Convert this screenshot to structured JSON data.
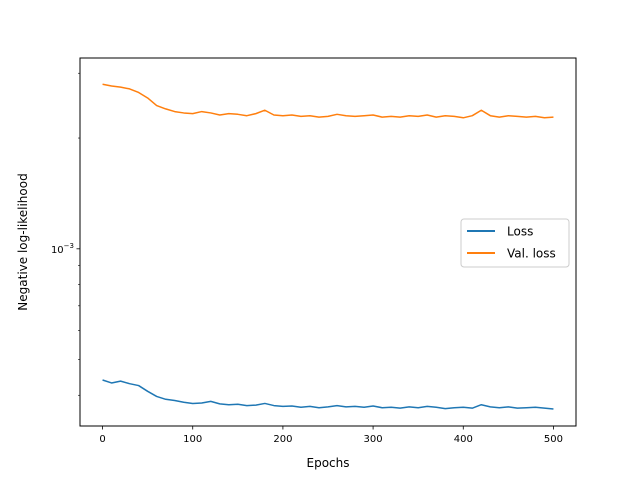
{
  "chart_data": {
    "type": "line",
    "title": "",
    "xlabel": "Epochs",
    "ylabel": "Negative log-likelihood",
    "xlim": [
      -25,
      525
    ],
    "ylim": [
      0.00033,
      0.0033
    ],
    "yscale": "log",
    "x_ticks": [
      0,
      100,
      200,
      300,
      400,
      500
    ],
    "x_tick_labels": [
      "0",
      "100",
      "200",
      "300",
      "400",
      "500"
    ],
    "y_major_tick": 0.001,
    "y_major_tick_label": "10",
    "y_major_tick_exponent": "−3",
    "grid": false,
    "legend_position": "center-right",
    "x": [
      0,
      10,
      20,
      30,
      40,
      50,
      60,
      70,
      80,
      90,
      100,
      110,
      120,
      130,
      140,
      150,
      160,
      170,
      180,
      190,
      200,
      210,
      220,
      230,
      240,
      250,
      260,
      270,
      280,
      290,
      300,
      310,
      320,
      330,
      340,
      350,
      360,
      370,
      380,
      390,
      400,
      410,
      420,
      430,
      440,
      450,
      460,
      470,
      480,
      490,
      500
    ],
    "series": [
      {
        "name": "Loss",
        "color": "#1f77b4",
        "values": [
          0.00044,
          0.000432,
          0.000437,
          0.00043,
          0.000425,
          0.00041,
          0.000397,
          0.00039,
          0.000387,
          0.000383,
          0.00038,
          0.000381,
          0.000385,
          0.000379,
          0.000377,
          0.000378,
          0.000375,
          0.000376,
          0.00038,
          0.000375,
          0.000373,
          0.000374,
          0.000371,
          0.000373,
          0.00037,
          0.000372,
          0.000375,
          0.000372,
          0.000373,
          0.000371,
          0.000374,
          0.00037,
          0.000371,
          0.000369,
          0.000372,
          0.00037,
          0.000373,
          0.000371,
          0.000368,
          0.00037,
          0.000371,
          0.000369,
          0.000377,
          0.000372,
          0.00037,
          0.000372,
          0.000369,
          0.00037,
          0.000371,
          0.000369,
          0.000367
        ]
      },
      {
        "name": "Val. loss",
        "color": "#ff7f0e",
        "values": [
          0.0028,
          0.00277,
          0.00275,
          0.00272,
          0.00266,
          0.00257,
          0.00245,
          0.0024,
          0.00236,
          0.00234,
          0.00233,
          0.00236,
          0.00234,
          0.00231,
          0.00233,
          0.00232,
          0.0023,
          0.00233,
          0.00238,
          0.00231,
          0.0023,
          0.00231,
          0.00229,
          0.0023,
          0.00228,
          0.00229,
          0.00232,
          0.0023,
          0.00229,
          0.0023,
          0.00231,
          0.00228,
          0.00229,
          0.00228,
          0.0023,
          0.00229,
          0.00231,
          0.00228,
          0.0023,
          0.00229,
          0.00227,
          0.0023,
          0.00238,
          0.0023,
          0.00228,
          0.0023,
          0.00229,
          0.00228,
          0.00229,
          0.00227,
          0.00228
        ]
      }
    ]
  }
}
